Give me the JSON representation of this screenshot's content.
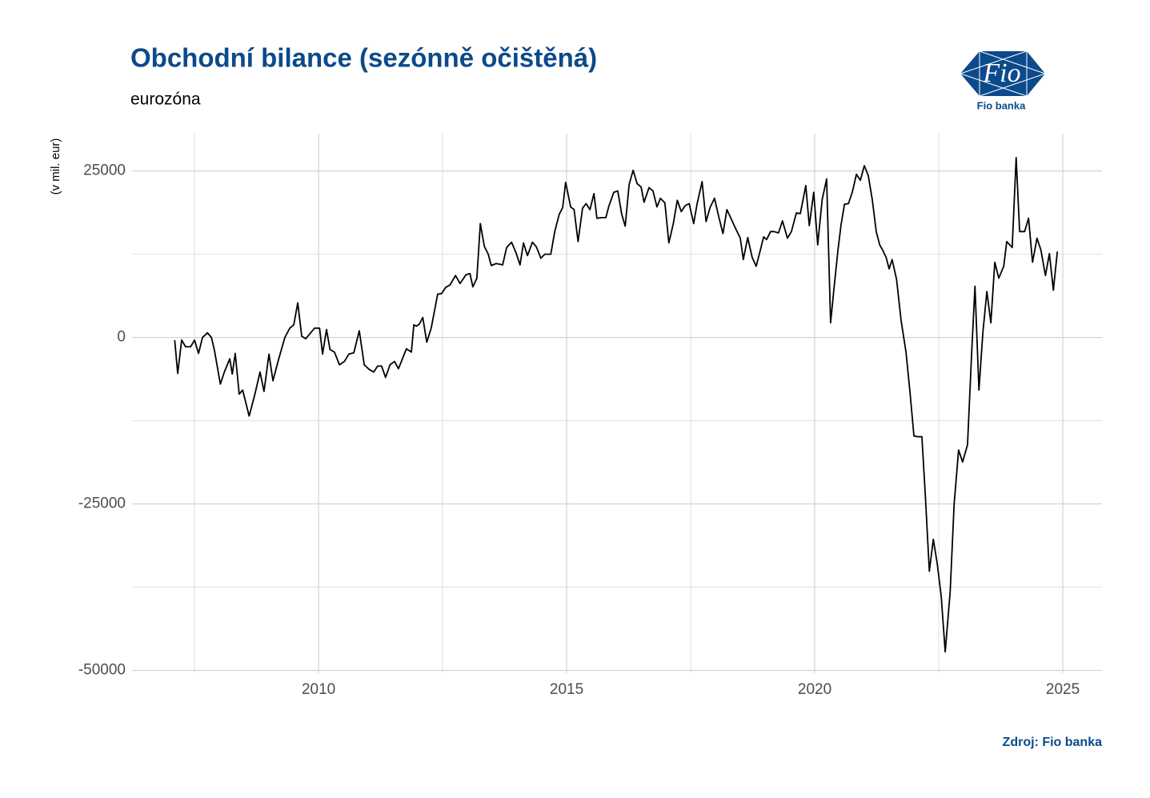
{
  "chart_data": {
    "type": "line",
    "title": "Obchodní bilance (sezónně očištěná)",
    "subtitle": "eurozóna",
    "y_label": "(v mil. eur)",
    "source": "Zdroj: Fio banka",
    "color": "#000000",
    "grid": true,
    "xlim": [
      2006.24,
      2025.79
    ],
    "ylim": [
      -50400,
      30600
    ],
    "xticks": [
      2010,
      2015,
      2020,
      2025
    ],
    "yticks": [
      -50000,
      -25000,
      0,
      25000
    ],
    "x": [
      2007.1,
      2007.16,
      2007.24,
      2007.32,
      2007.42,
      2007.5,
      2007.58,
      2007.66,
      2007.76,
      2007.84,
      2007.9,
      2008.02,
      2008.1,
      2008.21,
      2008.26,
      2008.32,
      2008.4,
      2008.47,
      2008.6,
      2008.71,
      2008.82,
      2008.9,
      2009.0,
      2009.08,
      2009.19,
      2009.32,
      2009.42,
      2009.5,
      2009.58,
      2009.66,
      2009.74,
      2009.84,
      2009.92,
      2010.02,
      2010.08,
      2010.16,
      2010.23,
      2010.32,
      2010.42,
      2010.52,
      2010.61,
      2010.71,
      2010.82,
      2010.92,
      2011.02,
      2011.11,
      2011.19,
      2011.27,
      2011.35,
      2011.44,
      2011.53,
      2011.61,
      2011.69,
      2011.77,
      2011.87,
      2011.92,
      2011.97,
      2012.03,
      2012.1,
      2012.18,
      2012.27,
      2012.4,
      2012.48,
      2012.56,
      2012.65,
      2012.76,
      2012.85,
      2012.97,
      2013.05,
      2013.11,
      2013.19,
      2013.26,
      2013.34,
      2013.42,
      2013.48,
      2013.58,
      2013.71,
      2013.79,
      2013.89,
      2013.98,
      2014.06,
      2014.13,
      2014.21,
      2014.31,
      2014.39,
      2014.48,
      2014.56,
      2014.68,
      2014.76,
      2014.85,
      2014.92,
      2014.98,
      2015.08,
      2015.15,
      2015.23,
      2015.32,
      2015.39,
      2015.47,
      2015.55,
      2015.61,
      2015.71,
      2015.79,
      2015.85,
      2015.95,
      2016.03,
      2016.11,
      2016.18,
      2016.26,
      2016.34,
      2016.42,
      2016.5,
      2016.56,
      2016.66,
      2016.74,
      2016.82,
      2016.89,
      2016.98,
      2017.06,
      2017.15,
      2017.23,
      2017.31,
      2017.39,
      2017.47,
      2017.56,
      2017.63,
      2017.73,
      2017.81,
      2017.89,
      2017.98,
      2018.06,
      2018.15,
      2018.23,
      2018.31,
      2018.39,
      2018.5,
      2018.56,
      2018.65,
      2018.74,
      2018.82,
      2018.9,
      2018.97,
      2019.03,
      2019.11,
      2019.18,
      2019.27,
      2019.35,
      2019.45,
      2019.53,
      2019.63,
      2019.71,
      2019.82,
      2019.89,
      2019.98,
      2020.06,
      2020.15,
      2020.24,
      2020.32,
      2020.39,
      2020.47,
      2020.53,
      2020.6,
      2020.68,
      2020.76,
      2020.84,
      2020.92,
      2021.0,
      2021.08,
      2021.16,
      2021.24,
      2021.31,
      2021.37,
      2021.44,
      2021.5,
      2021.56,
      2021.65,
      2021.74,
      2021.84,
      2021.92,
      2022.0,
      2022.08,
      2022.16,
      2022.23,
      2022.31,
      2022.39,
      2022.47,
      2022.55,
      2022.63,
      2022.73,
      2022.81,
      2022.9,
      2022.98,
      2023.08,
      2023.16,
      2023.23,
      2023.31,
      2023.39,
      2023.47,
      2023.55,
      2023.63,
      2023.71,
      2023.81,
      2023.87,
      2023.98,
      2024.06,
      2024.13,
      2024.23,
      2024.31,
      2024.39,
      2024.48,
      2024.56,
      2024.65,
      2024.73,
      2024.81,
      2024.89
    ],
    "values": [
      -400,
      -5400,
      -400,
      -1400,
      -1400,
      -400,
      -2400,
      0,
      700,
      0,
      -1900,
      -7000,
      -5200,
      -3200,
      -5500,
      -2400,
      -8500,
      -7900,
      -11800,
      -8700,
      -5200,
      -8100,
      -2500,
      -6500,
      -3400,
      0,
      1400,
      1900,
      5200,
      200,
      -200,
      700,
      1400,
      1400,
      -2500,
      1200,
      -1800,
      -2200,
      -4100,
      -3600,
      -2500,
      -2300,
      1000,
      -4100,
      -4800,
      -5200,
      -4300,
      -4300,
      -6000,
      -4100,
      -3600,
      -4700,
      -3200,
      -1700,
      -2200,
      1900,
      1700,
      2000,
      3000,
      -700,
      1400,
      6500,
      6600,
      7500,
      7900,
      9300,
      8100,
      9400,
      9600,
      7600,
      8900,
      17100,
      13700,
      12500,
      10800,
      11100,
      10900,
      13500,
      14300,
      12700,
      10900,
      14200,
      12300,
      14300,
      13600,
      11900,
      12500,
      12500,
      15900,
      18500,
      19500,
      23300,
      19600,
      19200,
      14400,
      19400,
      20100,
      19200,
      21600,
      17900,
      18000,
      18000,
      19700,
      21800,
      22000,
      18500,
      16700,
      23000,
      25100,
      23100,
      22600,
      20300,
      22500,
      22000,
      19600,
      20900,
      20200,
      14200,
      17100,
      20600,
      18900,
      19800,
      20100,
      17100,
      20100,
      23400,
      17400,
      19500,
      20900,
      18300,
      15600,
      19200,
      17900,
      16600,
      14900,
      11700,
      15000,
      12000,
      10700,
      13000,
      15100,
      14700,
      15900,
      15900,
      15700,
      17500,
      14900,
      15900,
      18700,
      18600,
      22800,
      16800,
      21800,
      13900,
      20700,
      23800,
      2200,
      7500,
      13200,
      16900,
      20000,
      20100,
      21900,
      24500,
      23600,
      25800,
      24300,
      20700,
      15900,
      13900,
      13100,
      12000,
      10300,
      11700,
      8700,
      2600,
      -2200,
      -8200,
      -14800,
      -14900,
      -14900,
      -23800,
      -35100,
      -30300,
      -34000,
      -38900,
      -47200,
      -38200,
      -25000,
      -16900,
      -18700,
      -16100,
      -2800,
      7700,
      -7900,
      800,
      6900,
      2200,
      11300,
      8900,
      10700,
      14400,
      13500,
      27000,
      15900,
      15900,
      17900,
      11300,
      14900,
      13100,
      9300,
      12600,
      7100,
      12900
    ]
  },
  "logo": {
    "mark": "Fio",
    "name": "Fio banka"
  }
}
